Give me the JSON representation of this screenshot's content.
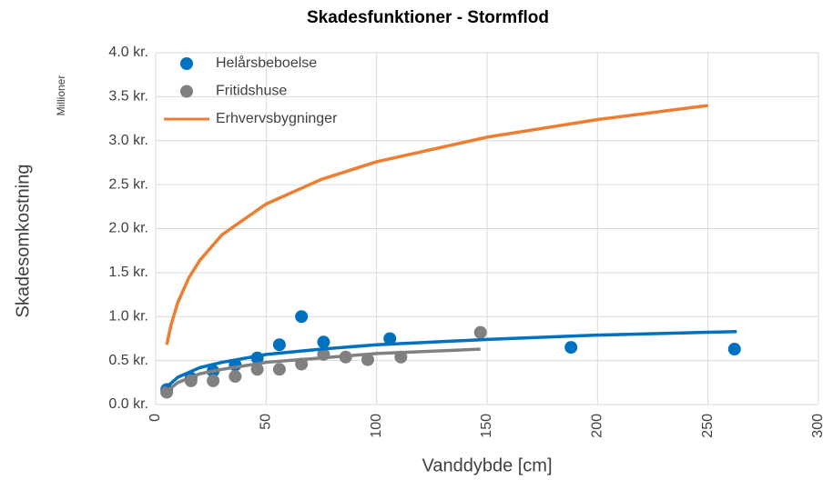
{
  "chart_data": {
    "type": "scatter",
    "title": "Skadesfunktioner - Stormflod",
    "x_label": "Vanddybde [cm]",
    "y_label": "Skadesomkostning",
    "y_unit_label": "Millioner",
    "xlim": [
      0,
      300
    ],
    "xticks": [
      0,
      50,
      100,
      150,
      200,
      250,
      300
    ],
    "ylim": [
      0,
      4
    ],
    "yticks": [
      {
        "value": 0,
        "label": "0.0 kr."
      },
      {
        "value": 0.5,
        "label": "0.5 kr."
      },
      {
        "value": 1,
        "label": "1.0 kr."
      },
      {
        "value": 1.5,
        "label": "1.5 kr."
      },
      {
        "value": 2,
        "label": "2.0 kr."
      },
      {
        "value": 2.5,
        "label": "2.5 kr."
      },
      {
        "value": 3,
        "label": "3.0 kr."
      },
      {
        "value": 3.5,
        "label": "3.5 kr."
      },
      {
        "value": 4,
        "label": "4.0 kr."
      }
    ],
    "grid": true,
    "legend": "top-left",
    "series": [
      {
        "name": "Helårsbeboelse",
        "type": "scatter",
        "color": "#0070c0",
        "x": [
          5,
          16,
          26,
          36,
          46,
          56,
          66,
          76,
          106,
          188,
          262
        ],
        "values": [
          0.17,
          0.3,
          0.38,
          0.45,
          0.53,
          0.68,
          1.0,
          0.71,
          0.75,
          0.65,
          0.63
        ]
      },
      {
        "name": "Fritidshuse",
        "type": "scatter",
        "color": "#808080",
        "x": [
          5,
          16,
          26,
          36,
          46,
          56,
          66,
          76,
          86,
          96,
          111,
          147
        ],
        "values": [
          0.14,
          0.27,
          0.27,
          0.32,
          0.4,
          0.4,
          0.46,
          0.57,
          0.54,
          0.51,
          0.54,
          0.82
        ]
      },
      {
        "name": "Erhvervsbygninger",
        "type": "line",
        "color": "#ed7d31",
        "x": [
          5,
          7,
          10,
          15,
          20,
          30,
          50,
          75,
          100,
          150,
          200,
          250
        ],
        "values": [
          0.68,
          0.91,
          1.16,
          1.44,
          1.64,
          1.93,
          2.28,
          2.56,
          2.76,
          3.04,
          3.24,
          3.4
        ]
      },
      {
        "type": "line",
        "color": "#0070c0",
        "x": [
          5,
          10,
          20,
          30,
          50,
          75,
          100,
          150,
          200,
          263
        ],
        "values": [
          0.2,
          0.31,
          0.42,
          0.48,
          0.57,
          0.63,
          0.68,
          0.74,
          0.79,
          0.83
        ]
      },
      {
        "type": "line",
        "color": "#808080",
        "x": [
          5,
          10,
          20,
          30,
          50,
          75,
          100,
          147
        ],
        "values": [
          0.15,
          0.25,
          0.35,
          0.4,
          0.48,
          0.53,
          0.58,
          0.63
        ]
      }
    ]
  }
}
